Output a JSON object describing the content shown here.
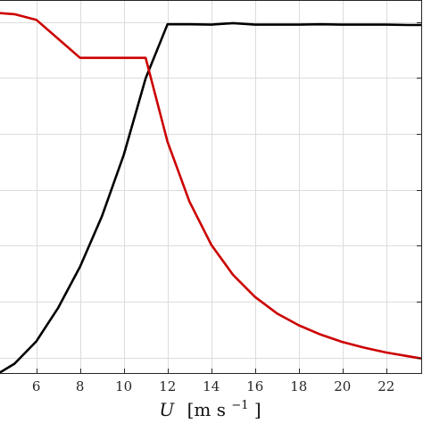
{
  "chart_data": {
    "type": "line",
    "title": "",
    "xlabel": "U [m s⁻¹]",
    "xlabel_parts": {
      "var": "U",
      "unit_open": "[m s",
      "unit_exp": "−1",
      "unit_close": "]"
    },
    "ylabel": "",
    "xlim": [
      4.3,
      23.6
    ],
    "ylim": [
      0,
      1
    ],
    "x_ticks": [
      6,
      8,
      10,
      12,
      14,
      16,
      18,
      20,
      22
    ],
    "x_tick_labels": [
      "6",
      "8",
      "10",
      "12",
      "14",
      "16",
      "18",
      "20",
      "22"
    ],
    "y_grid": [
      0.041,
      0.191,
      0.341,
      0.491,
      0.641,
      0.791,
      0.941
    ],
    "grid": true,
    "series": [
      {
        "color": "#000000",
        "x": [
          4.3,
          5,
          6,
          7,
          8,
          9,
          10,
          11,
          12,
          13,
          14,
          15,
          16,
          17,
          18,
          19,
          20,
          21,
          22,
          23,
          23.6
        ],
        "y": [
          0.0,
          0.025,
          0.085,
          0.175,
          0.285,
          0.42,
          0.585,
          0.79,
          0.935,
          0.935,
          0.934,
          0.938,
          0.934,
          0.934,
          0.934,
          0.935,
          0.934,
          0.934,
          0.934,
          0.933,
          0.933
        ]
      },
      {
        "color": "#cc0000",
        "x": [
          4.3,
          5,
          6,
          7,
          8,
          9,
          10,
          11,
          12,
          13,
          14,
          15,
          16,
          17,
          18,
          19,
          20,
          21,
          22,
          23,
          23.6
        ],
        "y": [
          0.965,
          0.962,
          0.947,
          0.896,
          0.845,
          0.845,
          0.845,
          0.845,
          0.62,
          0.46,
          0.344,
          0.263,
          0.204,
          0.16,
          0.128,
          0.103,
          0.083,
          0.068,
          0.055,
          0.045,
          0.039
        ]
      }
    ]
  }
}
